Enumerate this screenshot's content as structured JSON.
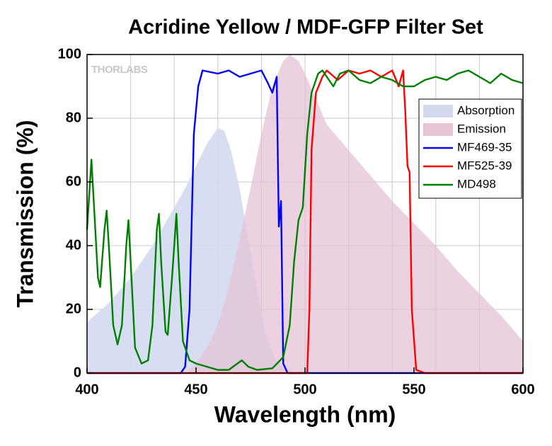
{
  "chart_data": {
    "type": "line",
    "title": "Acridine Yellow / MDF-GFP Filter Set",
    "xlabel": "Wavelength (nm)",
    "ylabel": "Transmission (%)",
    "watermark": "THORLABS",
    "xlim": [
      400,
      600
    ],
    "ylim": [
      0,
      100
    ],
    "xticks": [
      400,
      450,
      500,
      550,
      600
    ],
    "yticks": [
      0,
      20,
      40,
      60,
      80,
      100
    ],
    "x_gridlines": [
      420,
      440,
      460,
      480,
      500,
      520,
      540,
      560,
      580
    ],
    "grid": true,
    "legend": "upper right",
    "series": [
      {
        "name": "Absorption",
        "style": "area",
        "color": "#d3daef",
        "x": [
          400,
          410,
          420,
          430,
          440,
          445,
          450,
          455,
          460,
          463,
          466,
          470,
          474,
          478,
          482,
          486,
          490,
          495,
          500
        ],
        "values": [
          16,
          22,
          30,
          40,
          52,
          58,
          65,
          72,
          77,
          76,
          70,
          58,
          42,
          26,
          12,
          5,
          1.5,
          0.3,
          0
        ]
      },
      {
        "name": "Emission",
        "style": "area",
        "color": "#e6c3d5",
        "x": [
          445,
          450,
          455,
          460,
          465,
          470,
          475,
          480,
          485,
          490,
          493,
          497,
          500,
          505,
          510,
          520,
          530,
          540,
          550,
          560,
          570,
          580,
          590,
          600
        ],
        "values": [
          0,
          3,
          8,
          15,
          27,
          42,
          58,
          75,
          90,
          98,
          100,
          98,
          94,
          86,
          78,
          70,
          62,
          54,
          47,
          40,
          32,
          25,
          18,
          10
        ]
      },
      {
        "name": "MF469-35",
        "style": "line",
        "color": "#0000ff",
        "x": [
          400,
          443,
          445,
          447,
          449,
          451,
          453,
          460,
          465,
          470,
          475,
          480,
          483,
          485,
          487,
          488,
          489,
          490,
          492,
          600
        ],
        "values": [
          0,
          0,
          2,
          20,
          75,
          90,
          95,
          94,
          95,
          93,
          94,
          95,
          91,
          88,
          93,
          46,
          54,
          3,
          0,
          0
        ]
      },
      {
        "name": "MF525-39",
        "style": "line",
        "color": "#ff0000",
        "x": [
          400,
          501,
          502,
          503,
          505,
          508,
          510,
          515,
          520,
          525,
          530,
          535,
          540,
          543,
          545,
          546,
          547,
          548,
          549,
          551,
          555,
          600
        ],
        "values": [
          0,
          0,
          20,
          70,
          88,
          93,
          95,
          92,
          95,
          94,
          95,
          93,
          95,
          90,
          95,
          82,
          65,
          63,
          20,
          1,
          0,
          0
        ]
      },
      {
        "name": "MD498",
        "style": "line",
        "color": "#008000",
        "x": [
          400,
          402,
          403,
          405,
          406,
          408,
          409,
          410,
          412,
          414,
          416,
          418,
          419,
          420,
          422,
          425,
          428,
          430,
          432,
          433,
          434,
          436,
          437,
          439,
          441,
          442,
          444,
          447,
          450,
          455,
          460,
          465,
          469,
          471,
          474,
          478,
          485,
          490,
          493,
          495,
          497,
          499,
          501,
          503,
          506,
          508,
          510,
          513,
          516,
          520,
          525,
          530,
          535,
          540,
          545,
          550,
          555,
          560,
          565,
          570,
          575,
          580,
          585,
          590,
          595,
          600
        ],
        "values": [
          45,
          67,
          55,
          30,
          27,
          45,
          51,
          40,
          15,
          9,
          15,
          40,
          48,
          35,
          8,
          3,
          4,
          15,
          45,
          50,
          35,
          13,
          12,
          30,
          50,
          35,
          10,
          4,
          3,
          2,
          1,
          1,
          3,
          4,
          2,
          1,
          1.5,
          5,
          15,
          35,
          48,
          52,
          75,
          88,
          94,
          95,
          93,
          90,
          94,
          95,
          92,
          91,
          93,
          92,
          90,
          90,
          92,
          93,
          92,
          94,
          95,
          93,
          91,
          94,
          92,
          91
        ]
      }
    ]
  }
}
